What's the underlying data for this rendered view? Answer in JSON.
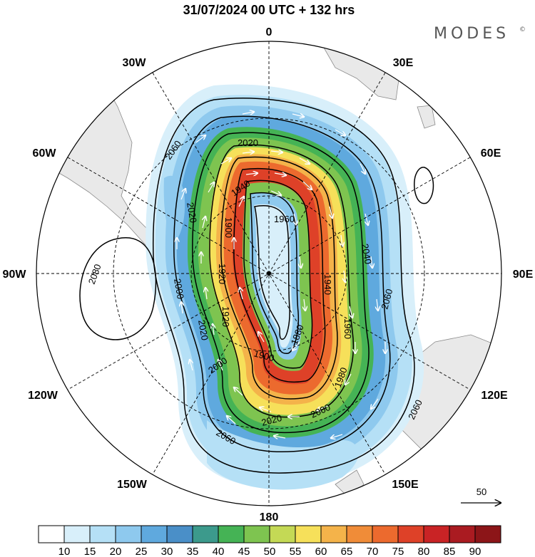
{
  "title": "31/07/2024  00 UTC  + 132 hrs",
  "brand": "MODES",
  "brand_mark": "©",
  "longitude_labels": {
    "n": "0",
    "ne": "30E",
    "e1": "60E",
    "e": "90E",
    "se1": "120E",
    "se": "150E",
    "s": "180",
    "sw": "150W",
    "sw1": "120W",
    "w": "90W",
    "nw1": "60W",
    "nw": "30W"
  },
  "contours": {
    "c2080": "2080",
    "c2060a": "2060",
    "c2060b": "2060",
    "c2060c": "2060",
    "c2060d": "2060",
    "c2040": "2040",
    "c2020a": "2020",
    "c2020b": "2020",
    "c2020c": "2020",
    "c2020d": "2020",
    "c2000a": "2000",
    "c2000b": "2000",
    "c2000c": "2000",
    "c1980": "1980",
    "c1960a": "1960",
    "c1960b": "1960",
    "c1940a": "1940",
    "c1940b": "1940",
    "c1920a": "1920",
    "c1920b": "1920",
    "c1900a": "1900",
    "c1900b": "1900",
    "c1880": "1880"
  },
  "vector_reference": "50",
  "colorbar": {
    "colors": [
      "#ffffff",
      "#d8effa",
      "#b5e0f6",
      "#8ec9ee",
      "#5fa9de",
      "#4a8fc8",
      "#3c9a8c",
      "#45b355",
      "#7ec450",
      "#c4d955",
      "#f6e05a",
      "#f4b34a",
      "#f08c38",
      "#ec6a2e",
      "#de4128",
      "#c92325",
      "#aa1b21",
      "#8c1518"
    ],
    "ticks": [
      "10",
      "15",
      "20",
      "25",
      "30",
      "35",
      "40",
      "45",
      "50",
      "55",
      "60",
      "65",
      "70",
      "75",
      "80",
      "85",
      "90"
    ]
  }
}
